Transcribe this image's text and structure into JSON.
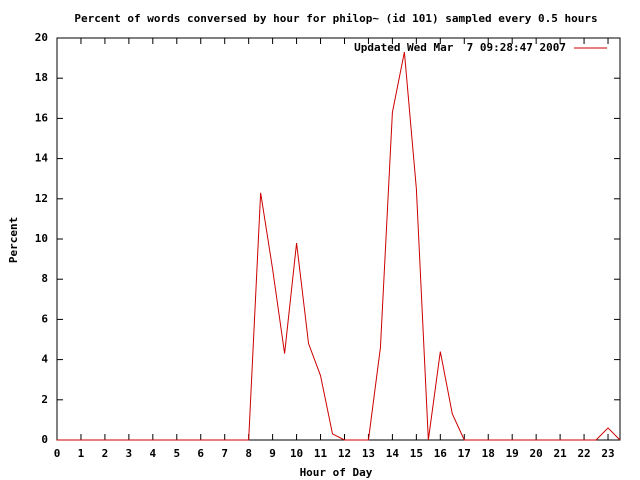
{
  "chart_data": {
    "type": "line",
    "title": "Percent of words conversed by hour for philop~ (id 101) sampled every 0.5 hours",
    "x_label": "Hour of Day",
    "y_label": "Percent",
    "x": [
      0,
      0.5,
      1,
      1.5,
      2,
      2.5,
      3,
      3.5,
      4,
      4.5,
      5,
      5.5,
      6,
      6.5,
      7,
      7.5,
      8,
      8.5,
      9,
      9.5,
      10,
      10.5,
      11,
      11.5,
      12,
      12.5,
      13,
      13.5,
      14,
      14.5,
      15,
      15.5,
      16,
      16.5,
      17,
      17.5,
      18,
      18.5,
      19,
      19.5,
      20,
      20.5,
      21,
      21.5,
      22,
      22.5,
      23,
      23.5
    ],
    "series": [
      {
        "name": "Updated Wed Mar  7 09:28:47 2007",
        "color": "#cc0000",
        "values": [
          0,
          0,
          0,
          0,
          0,
          0,
          0,
          0,
          0,
          0,
          0,
          0,
          0,
          0,
          0,
          0,
          0,
          12.3,
          8.5,
          4.3,
          9.8,
          4.8,
          3.2,
          0.3,
          0,
          0,
          0,
          4.6,
          16.3,
          19.3,
          12.5,
          0,
          4.4,
          1.3,
          0,
          0,
          0,
          0,
          0,
          0,
          0,
          0,
          0,
          0,
          0,
          0,
          0.6,
          0
        ]
      }
    ],
    "xlim": [
      0,
      23.5
    ],
    "xticks": [
      0,
      1,
      2,
      3,
      4,
      5,
      6,
      7,
      8,
      9,
      10,
      11,
      12,
      13,
      14,
      15,
      16,
      17,
      18,
      19,
      20,
      21,
      22,
      23
    ],
    "ylim": [
      0,
      20
    ],
    "yticks": [
      0,
      2,
      4,
      6,
      8,
      10,
      12,
      14,
      16,
      18,
      20
    ],
    "grid": false,
    "legend_position": "top-right"
  }
}
